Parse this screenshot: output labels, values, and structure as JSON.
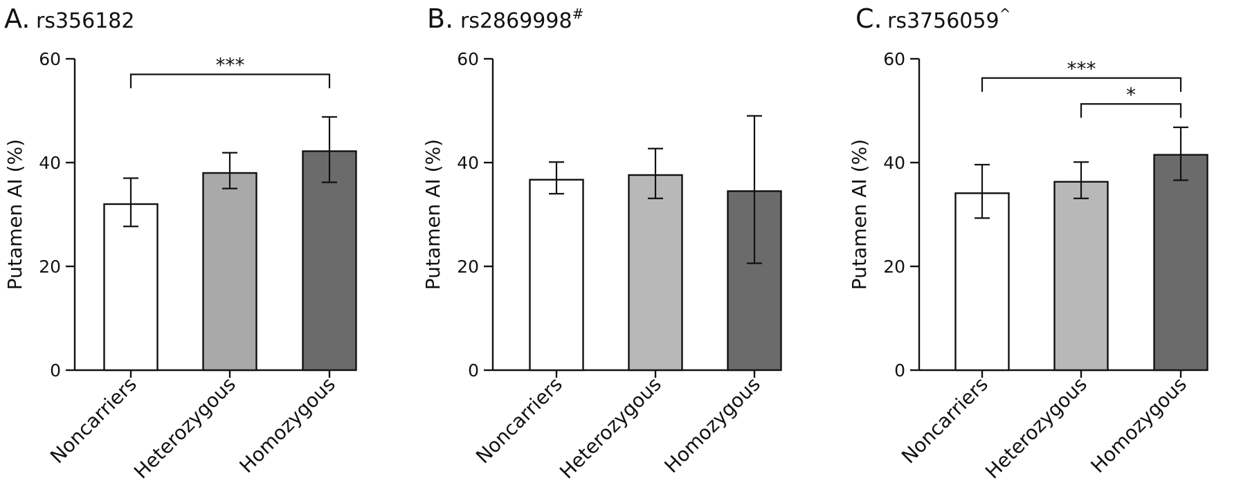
{
  "chart_data": [
    {
      "type": "bar",
      "panel": "A.",
      "title": "rs356182",
      "title_superscript": "",
      "xlabel": "",
      "ylabel": "Putamen AI (%)",
      "ylim": [
        0,
        60
      ],
      "yticks": [
        0,
        20,
        40,
        60
      ],
      "categories": [
        "Noncarriers",
        "Heterozygous",
        "Homozygous"
      ],
      "values": [
        32,
        38,
        42.2
      ],
      "error_low": [
        27.7,
        35,
        36.2
      ],
      "error_high": [
        37,
        41.9,
        48.8
      ],
      "bar_colors": [
        "#ffffff",
        "#a9a9a9",
        "#6b6b6b"
      ],
      "significance": [
        {
          "from": 0,
          "to": 2,
          "label": "***",
          "y": 57
        }
      ]
    },
    {
      "type": "bar",
      "panel": "B.",
      "title": "rs2869998",
      "title_superscript": "#",
      "xlabel": "",
      "ylabel": "Putamen AI (%)",
      "ylim": [
        0,
        60
      ],
      "yticks": [
        0,
        20,
        40,
        60
      ],
      "categories": [
        "Noncarriers",
        "Heterozygous",
        "Homozygous"
      ],
      "values": [
        36.7,
        37.6,
        34.5
      ],
      "error_low": [
        34,
        33.1,
        20.6
      ],
      "error_high": [
        40.1,
        42.7,
        49
      ],
      "bar_colors": [
        "#ffffff",
        "#b8b8b8",
        "#6b6b6b"
      ],
      "significance": []
    },
    {
      "type": "bar",
      "panel": "C.",
      "title": "rs3756059",
      "title_superscript": "^",
      "xlabel": "",
      "ylabel": "Putamen AI (%)",
      "ylim": [
        0,
        60
      ],
      "yticks": [
        0,
        20,
        40,
        60
      ],
      "categories": [
        "Noncarriers",
        "Heterozygous",
        "Homozygous"
      ],
      "values": [
        34.1,
        36.3,
        41.5
      ],
      "error_low": [
        29.3,
        33.1,
        36.6
      ],
      "error_high": [
        39.6,
        40.1,
        46.8
      ],
      "bar_colors": [
        "#ffffff",
        "#b8b8b8",
        "#6b6b6b"
      ],
      "significance": [
        {
          "from": 0,
          "to": 2,
          "label": "***",
          "y": 56.3
        },
        {
          "from": 1,
          "to": 2,
          "label": "*",
          "y": 51.3
        }
      ]
    }
  ]
}
